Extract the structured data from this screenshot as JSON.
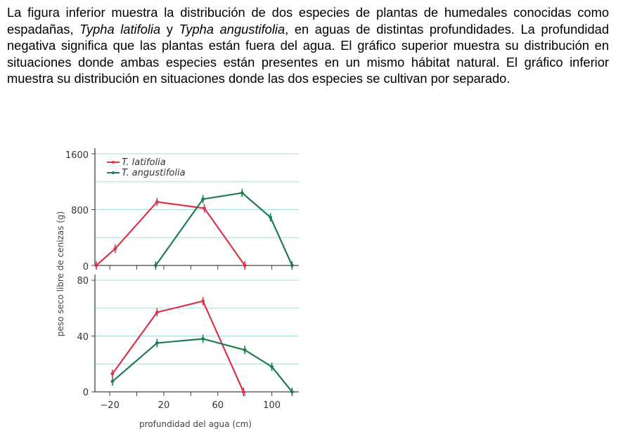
{
  "text": {
    "p1": "La figura inferior muestra la distribución de dos especies de plantas de humedales conocidas como espadañas, ",
    "sp1": "Typha latifolia",
    "and": " y ",
    "sp2": "Typha angustifolia",
    "p2": ", en aguas de distintas profundidades. La profundidad negativa significa que las plantas están fuera del agua. El gráfico superior muestra su distribución en situaciones donde ambas especies están presentes en un mismo hábitat natural. El gráfico inferior muestra su distribución en situaciones donde las dos especies se cultivan por separado."
  },
  "chart_data": [
    {
      "type": "line",
      "title": "",
      "xlabel": "profundidad del agua (cm)",
      "ylabel": "peso seco libre de cenizas (g)",
      "xlim": [
        -31,
        120
      ],
      "ylim": [
        0,
        1600
      ],
      "yticks": [
        0,
        800,
        1600
      ],
      "grid": true,
      "legend": "top-left",
      "series": [
        {
          "name": "T. latifolia",
          "color": "#d9344a",
          "x": [
            -30,
            -16,
            15,
            50,
            80
          ],
          "y": [
            0,
            240,
            910,
            820,
            0
          ]
        },
        {
          "name": "T. angustifolia",
          "color": "#1e7d4e",
          "x": [
            14,
            49,
            78,
            99,
            115
          ],
          "y": [
            0,
            950,
            1040,
            690,
            0
          ]
        }
      ]
    },
    {
      "type": "line",
      "xlabel": "profundidad del agua (cm)",
      "ylabel": "peso seco libre de cenizas (g)",
      "xlim": [
        -31,
        120
      ],
      "ylim": [
        0,
        80
      ],
      "xticks": [
        -20,
        20,
        60,
        100
      ],
      "xtick_labels": [
        "−20",
        "20",
        "60",
        "100"
      ],
      "yticks": [
        0,
        40,
        80
      ],
      "grid": true,
      "series": [
        {
          "color": "#d9344a",
          "x": [
            -18,
            15,
            49,
            79
          ],
          "y": [
            13,
            57,
            65,
            0
          ]
        },
        {
          "color": "#1e7d4e",
          "x": [
            -18,
            15,
            49,
            80,
            100,
            115
          ],
          "y": [
            7.5,
            35,
            38,
            30,
            18,
            0
          ]
        }
      ]
    }
  ]
}
